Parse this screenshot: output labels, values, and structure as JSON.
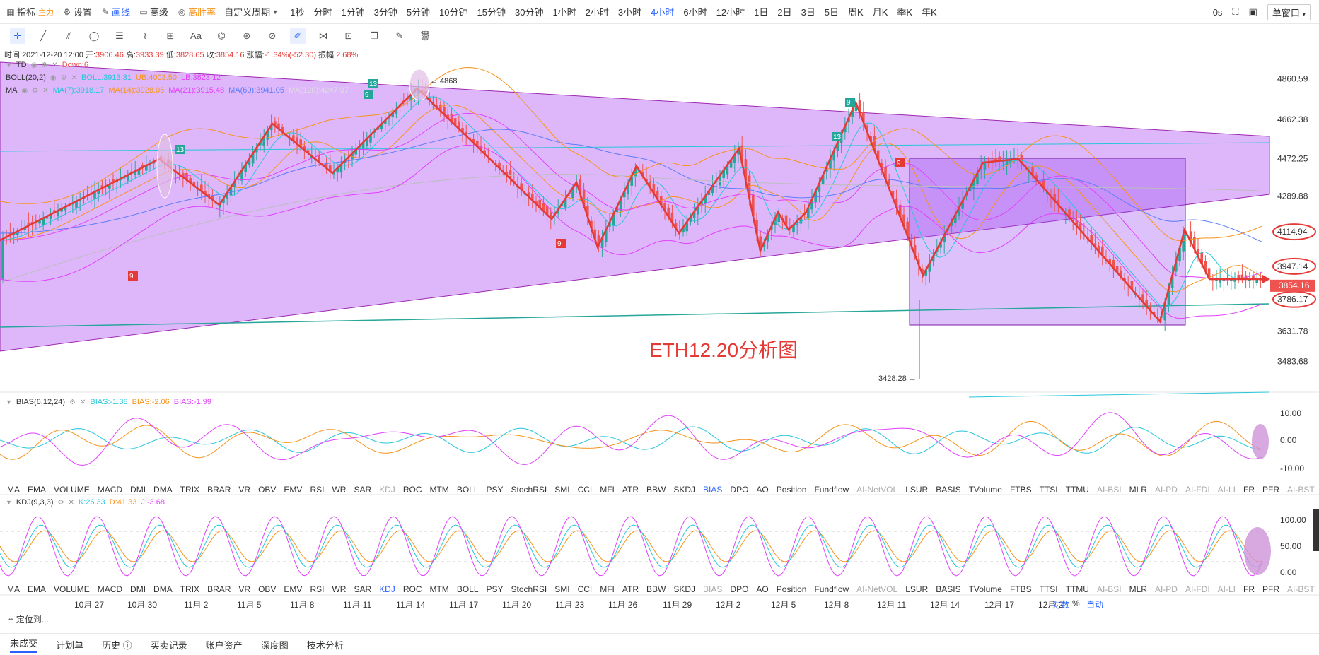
{
  "toolbar": {
    "indicator": "指标",
    "indicator_tag": "主力",
    "settings": "设置",
    "draw": "画线",
    "advanced": "高级",
    "win_rate": "高胜率",
    "custom_period": "自定义周期",
    "periods": [
      "1秒",
      "分时",
      "1分钟",
      "3分钟",
      "5分钟",
      "10分钟",
      "15分钟",
      "30分钟",
      "1小时",
      "2小时",
      "3小时",
      "4小时",
      "6小时",
      "12小时",
      "1日",
      "2日",
      "3日",
      "5日",
      "周K",
      "月K",
      "季K",
      "年K"
    ],
    "active_period": "4小时",
    "timer": "0s",
    "window": "单窗口"
  },
  "info": {
    "time_label": "时间:",
    "time": "2021-12-20 12:00",
    "open_label": "开:",
    "open": "3906.46",
    "high_label": "高:",
    "high": "3933.39",
    "low_label": "低:",
    "low": "3828.65",
    "close_label": "收:",
    "close": "3854.16",
    "change_label": "涨幅:",
    "change": "-1.34%(-52.30)",
    "amp_label": "振幅:",
    "amp": "2.68%"
  },
  "legends": {
    "td": "TD",
    "td_val": "Down:6",
    "boll": "BOLL(20,2)",
    "boll_mid": "BOLL:3913.31",
    "boll_ub": "UB:4003.50",
    "boll_lb": "LB:3823.12",
    "ma": "MA",
    "ma7": "MA(7):3918.17",
    "ma14": "MA(14):3928.06",
    "ma21": "MA(21):3915.48",
    "ma60": "MA(60):3941.05",
    "ma120": "MA(120):4247.97",
    "bias": "BIAS(6,12,24)",
    "bias1": "BIAS:-1.38",
    "bias2": "BIAS:-2.06",
    "bias3": "BIAS:-1.99",
    "kdj": "KDJ(9,3,3)",
    "k": "K:26.33",
    "d": "D:41.33",
    "j": "J:-3.68"
  },
  "price_axis": {
    "labels": [
      "4860.59",
      "4662.38",
      "4472.25",
      "4289.88",
      "4114.94",
      "3947.14",
      "3786.17",
      "3631.78",
      "3483.68"
    ],
    "current": "3854.16",
    "high_mark": "4868",
    "low_mark": "3428.28"
  },
  "bias_axis": [
    "10.00",
    "0.00",
    "-10.00"
  ],
  "kdj_axis": [
    "100.00",
    "50.00",
    "0.00"
  ],
  "annotation": "ETH12.20分析图",
  "td_marks": [
    "13",
    "9",
    "13",
    "9",
    "13",
    "9",
    "9",
    "9"
  ],
  "indicator_tabs": [
    "MA",
    "EMA",
    "VOLUME",
    "MACD",
    "DMI",
    "DMA",
    "TRIX",
    "BRAR",
    "VR",
    "OBV",
    "EMV",
    "RSI",
    "WR",
    "SAR",
    "KDJ",
    "ROC",
    "MTM",
    "BOLL",
    "PSY",
    "StochRSI",
    "SMI",
    "CCI",
    "MFI",
    "ATR",
    "BBW",
    "SKDJ",
    "BIAS",
    "DPO",
    "AO",
    "Position",
    "Fundflow",
    "AI-NetVOL",
    "LSUR",
    "BASIS",
    "TVolume",
    "FTBS",
    "TTSI",
    "TTMU",
    "AI-BSI",
    "MLR",
    "AI-PD",
    "AI-FDI",
    "AI-LI",
    "FR",
    "PFR",
    "AI-BST"
  ],
  "x_axis": [
    "10月 27",
    "10月 30",
    "11月 2",
    "11月 5",
    "11月 8",
    "11月 11",
    "11月 14",
    "11月 17",
    "11月 20",
    "11月 23",
    "11月 26",
    "11月 29",
    "12月 2",
    "12月 5",
    "12月 8",
    "12月 11",
    "12月 14",
    "12月 17",
    "12月 2"
  ],
  "axis_opts": [
    "对数",
    "%",
    "自动"
  ],
  "locate": "定位到...",
  "bottom_tabs": [
    "未成交",
    "计划单",
    "历史",
    "买卖记录",
    "账户资产",
    "深度图",
    "技术分析"
  ],
  "colors": {
    "up": "#26a69a",
    "down": "#ef5350",
    "triangle": "#c27bf7",
    "accent": "#2962ff",
    "annotation": "#e53935"
  }
}
